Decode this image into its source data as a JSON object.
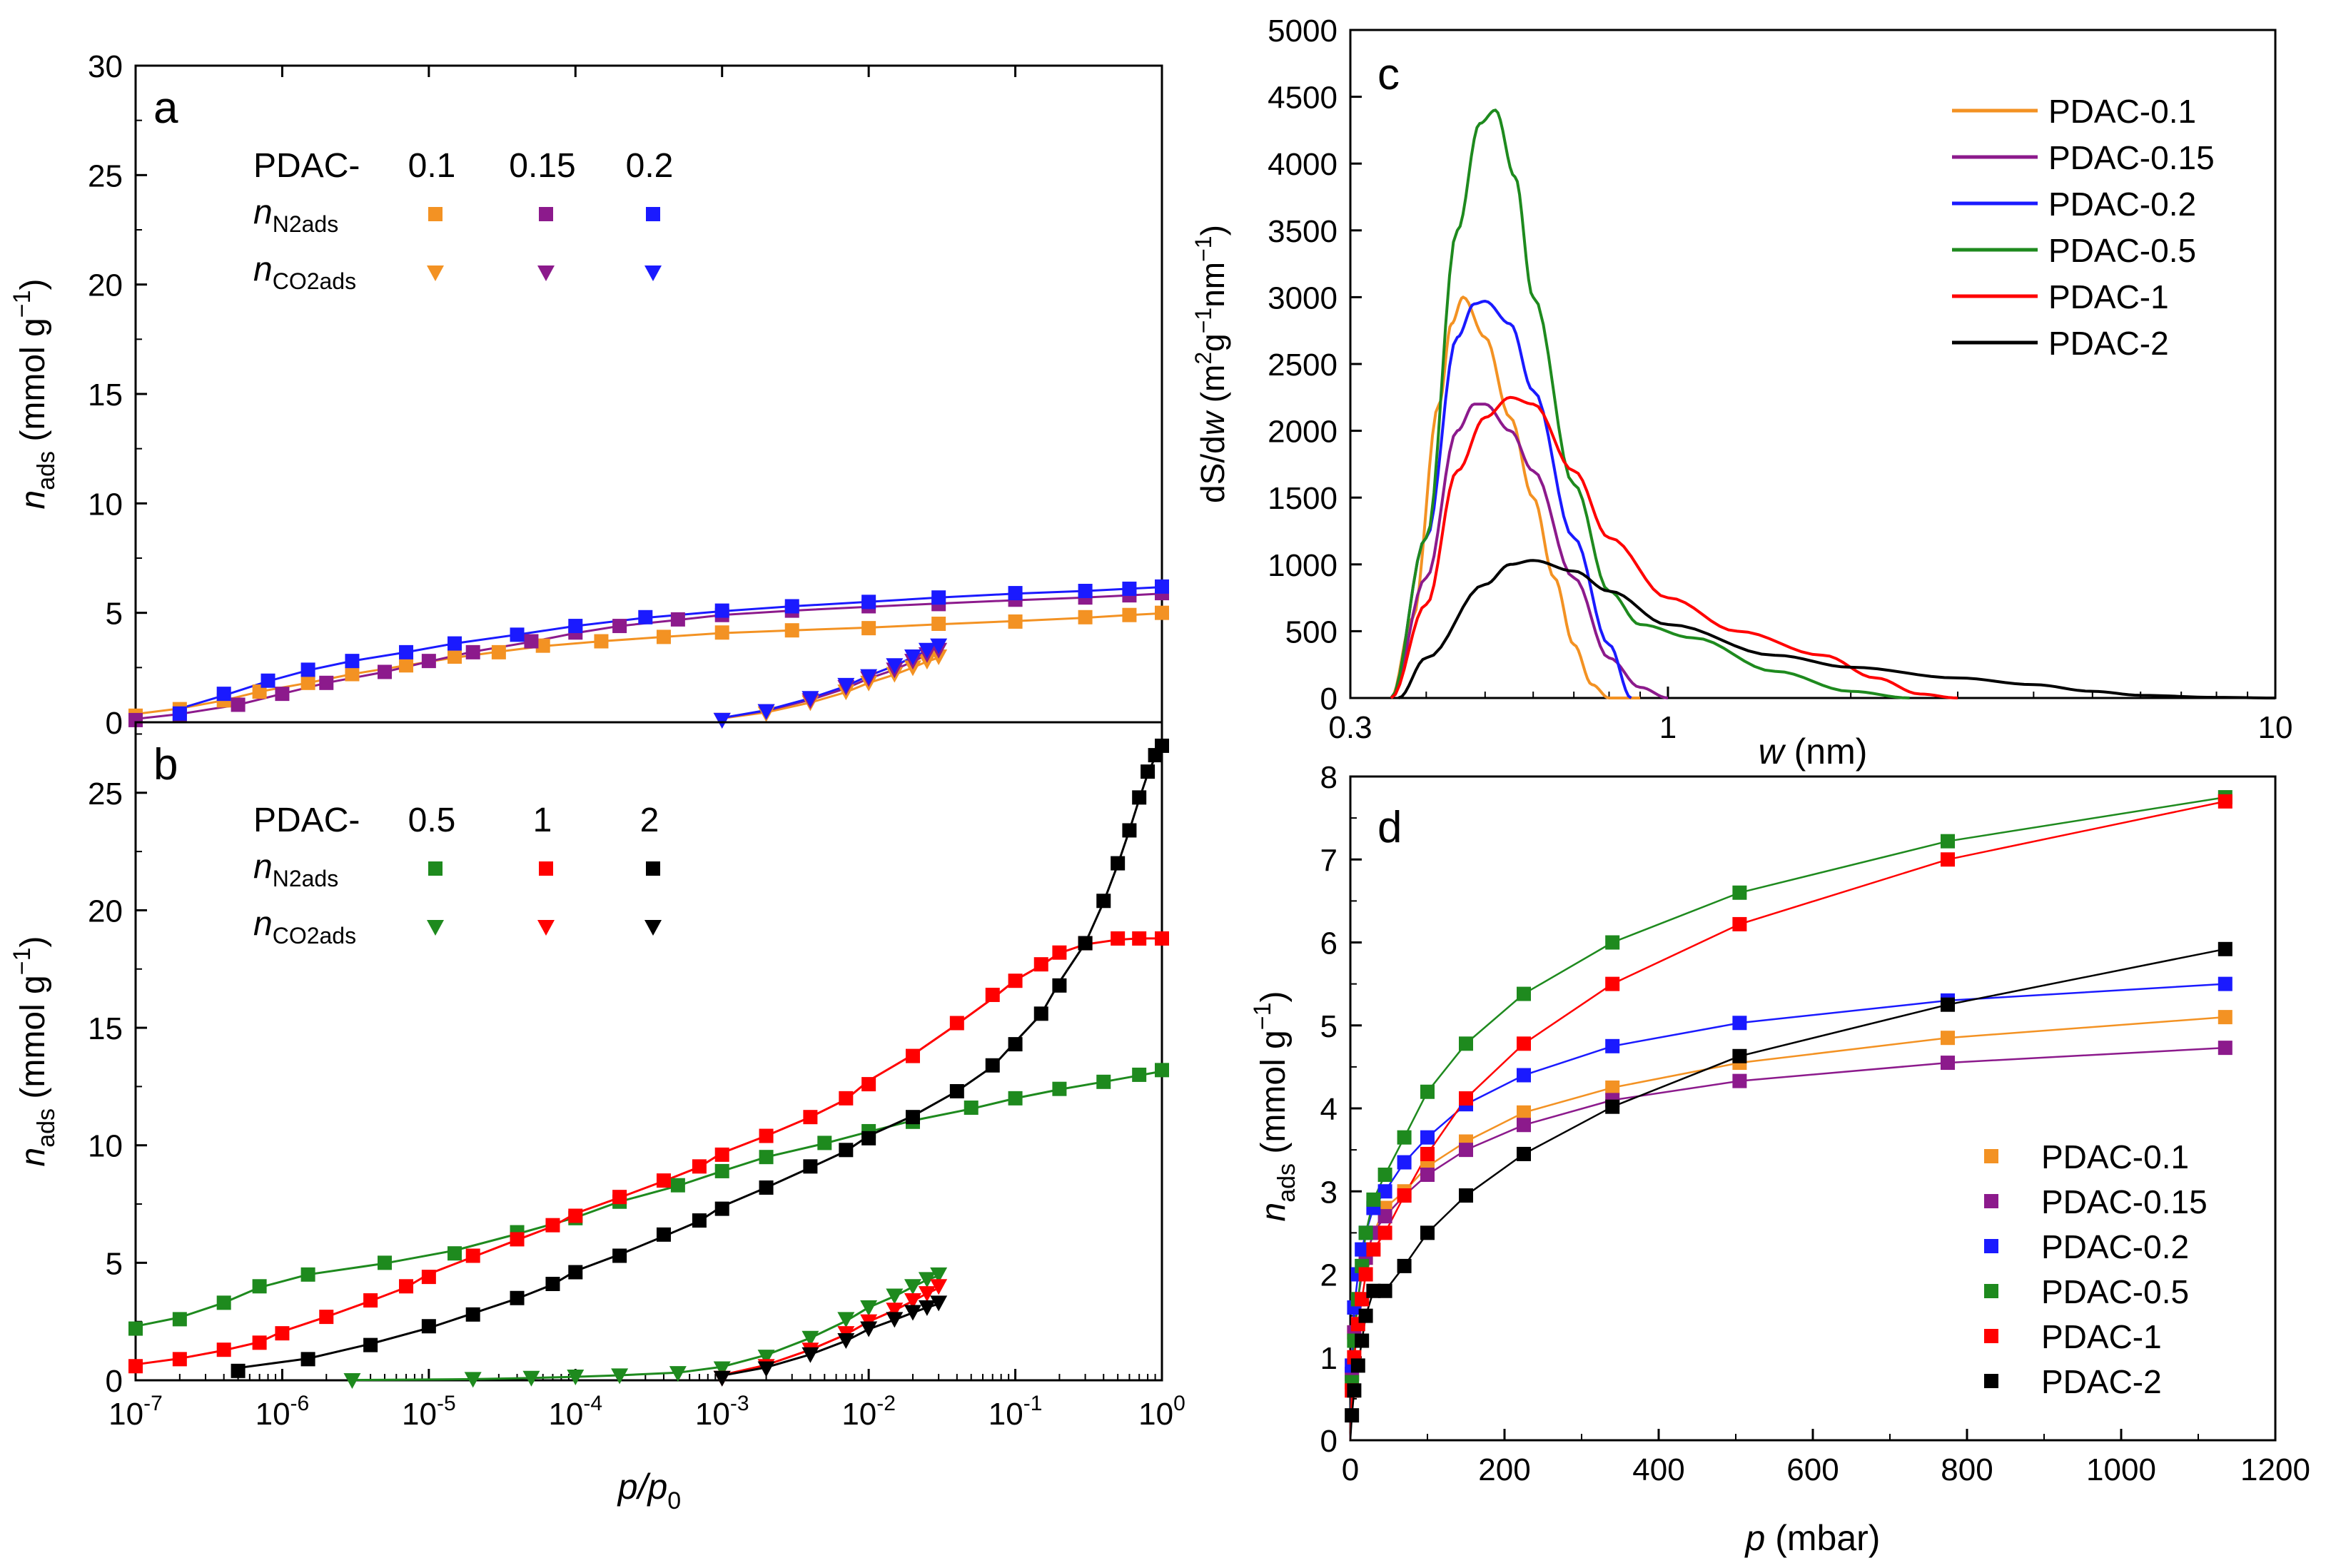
{
  "chart_data": [
    {
      "panel": "a",
      "type": "scatter",
      "x_axis": "log",
      "xlim": [
        1e-07,
        1
      ],
      "ylim": [
        0,
        30
      ],
      "yticks": [
        0,
        5,
        10,
        15,
        20,
        25,
        30
      ],
      "ylabel": {
        "main": "n",
        "sub": "ads",
        "unit": " (mmol g",
        "sup": "−1",
        "close": ")"
      },
      "legend": {
        "prefix": "PDAC-",
        "columns": [
          "0.1",
          "0.15",
          "0.2"
        ],
        "colors": [
          "#f39223",
          "#8c1a8c",
          "#1a1aff"
        ],
        "row1": {
          "main": "n",
          "sub": "N2ads"
        },
        "row2": {
          "main": "n",
          "sub": "CO2ads"
        }
      },
      "series": [
        {
          "name": "PDAC-0.1 N2",
          "color": "#f39223",
          "marker": "square",
          "x": [
            1e-07,
            2e-07,
            4e-07,
            7e-07,
            1.5e-06,
            3e-06,
            7e-06,
            1.5e-05,
            3e-05,
            6e-05,
            0.00015,
            0.0004,
            0.001,
            0.003,
            0.01,
            0.03,
            0.1,
            0.3,
            0.6,
            1
          ],
          "y": [
            0.3,
            0.6,
            1.0,
            1.4,
            1.8,
            2.2,
            2.6,
            3.0,
            3.2,
            3.5,
            3.7,
            3.9,
            4.1,
            4.2,
            4.3,
            4.5,
            4.6,
            4.8,
            4.9,
            5.0
          ]
        },
        {
          "name": "PDAC-0.15 N2",
          "color": "#8c1a8c",
          "marker": "square",
          "x": [
            1e-07,
            2e-07,
            5e-07,
            1e-06,
            2e-06,
            5e-06,
            1e-05,
            2e-05,
            5e-05,
            0.0001,
            0.0002,
            0.0005,
            0.001,
            0.003,
            0.01,
            0.03,
            0.1,
            0.3,
            0.6,
            1
          ],
          "y": [
            0.1,
            0.3,
            0.8,
            1.3,
            1.8,
            2.3,
            2.8,
            3.2,
            3.7,
            4.1,
            4.4,
            4.7,
            4.9,
            5.1,
            5.3,
            5.4,
            5.6,
            5.7,
            5.8,
            5.9
          ]
        },
        {
          "name": "PDAC-0.2 N2",
          "color": "#1a1aff",
          "marker": "square",
          "x": [
            2e-07,
            4e-07,
            8e-07,
            1.5e-06,
            3e-06,
            7e-06,
            1.5e-05,
            4e-05,
            0.0001,
            0.0003,
            0.001,
            0.003,
            0.01,
            0.03,
            0.1,
            0.3,
            0.6,
            1
          ],
          "y": [
            0.4,
            1.3,
            1.9,
            2.4,
            2.8,
            3.2,
            3.6,
            4.0,
            4.4,
            4.8,
            5.1,
            5.3,
            5.5,
            5.7,
            5.9,
            6.0,
            6.1,
            6.2
          ]
        },
        {
          "name": "PDAC-0.1 CO2",
          "color": "#f39223",
          "marker": "triangle",
          "x": [
            0.001,
            0.002,
            0.004,
            0.007,
            0.01,
            0.015,
            0.02,
            0.025,
            0.03
          ],
          "y": [
            0.1,
            0.4,
            0.9,
            1.4,
            1.8,
            2.2,
            2.5,
            2.8,
            3.0
          ]
        },
        {
          "name": "PDAC-0.15 CO2",
          "color": "#8c1a8c",
          "marker": "triangle",
          "x": [
            0.001,
            0.002,
            0.004,
            0.007,
            0.01,
            0.015,
            0.02,
            0.025,
            0.03
          ],
          "y": [
            0.1,
            0.5,
            1.0,
            1.6,
            2.0,
            2.4,
            2.8,
            3.1,
            3.3
          ]
        },
        {
          "name": "PDAC-0.2 CO2",
          "color": "#1a1aff",
          "marker": "triangle",
          "x": [
            0.001,
            0.002,
            0.004,
            0.007,
            0.01,
            0.015,
            0.02,
            0.025,
            0.03
          ],
          "y": [
            0.1,
            0.5,
            1.1,
            1.7,
            2.1,
            2.6,
            3.0,
            3.3,
            3.5
          ]
        }
      ]
    },
    {
      "panel": "b",
      "type": "scatter",
      "x_axis": "log",
      "xlim": [
        1e-07,
        1
      ],
      "ylim": [
        0,
        28
      ],
      "yticks": [
        0,
        5,
        10,
        15,
        20,
        25
      ],
      "xticks": [
        {
          "base": "10",
          "exp": "-7",
          "v": 1e-07
        },
        {
          "base": "10",
          "exp": "-6",
          "v": 1e-06
        },
        {
          "base": "10",
          "exp": "-5",
          "v": 1e-05
        },
        {
          "base": "10",
          "exp": "-4",
          "v": 0.0001
        },
        {
          "base": "10",
          "exp": "-3",
          "v": 0.001
        },
        {
          "base": "10",
          "exp": "-2",
          "v": 0.01
        },
        {
          "base": "10",
          "exp": "-1",
          "v": 0.1
        },
        {
          "base": "10",
          "exp": "0",
          "v": 1
        }
      ],
      "xlabel": {
        "main": "p/p",
        "sub": "0"
      },
      "ylabel": {
        "main": "n",
        "sub": "ads",
        "unit": " (mmol g",
        "sup": "−1",
        "close": ")"
      },
      "legend": {
        "prefix": "PDAC-",
        "columns": [
          "0.5",
          "1",
          "2"
        ],
        "colors": [
          "#1e8a1e",
          "#ff0000",
          "#000000"
        ],
        "row1": {
          "main": "n",
          "sub": "N2ads"
        },
        "row2": {
          "main": "n",
          "sub": "CO2ads"
        }
      },
      "series": [
        {
          "name": "PDAC-0.5 N2",
          "color": "#1e8a1e",
          "marker": "square",
          "x": [
            1e-07,
            2e-07,
            4e-07,
            7e-07,
            1.5e-06,
            5e-06,
            1.5e-05,
            4e-05,
            0.0001,
            0.0002,
            0.0005,
            0.001,
            0.002,
            0.005,
            0.01,
            0.02,
            0.05,
            0.1,
            0.2,
            0.4,
            0.7,
            1
          ],
          "y": [
            2.2,
            2.6,
            3.3,
            4.0,
            4.5,
            5.0,
            5.4,
            6.3,
            6.9,
            7.6,
            8.3,
            8.9,
            9.5,
            10.1,
            10.6,
            11.0,
            11.6,
            12.0,
            12.4,
            12.7,
            13.0,
            13.2
          ]
        },
        {
          "name": "PDAC-1 N2",
          "color": "#ff0000",
          "marker": "square",
          "x": [
            1e-07,
            2e-07,
            4e-07,
            7e-07,
            1e-06,
            2e-06,
            4e-06,
            7e-06,
            1e-05,
            2e-05,
            4e-05,
            7e-05,
            0.0001,
            0.0002,
            0.0004,
            0.0007,
            0.001,
            0.002,
            0.004,
            0.007,
            0.01,
            0.02,
            0.04,
            0.07,
            0.1,
            0.15,
            0.2,
            0.3,
            0.5,
            0.7,
            1
          ],
          "y": [
            0.6,
            0.9,
            1.3,
            1.6,
            2.0,
            2.7,
            3.4,
            4.0,
            4.4,
            5.3,
            6.0,
            6.6,
            7.0,
            7.8,
            8.5,
            9.1,
            9.6,
            10.4,
            11.2,
            12.0,
            12.6,
            13.8,
            15.2,
            16.4,
            17.0,
            17.7,
            18.2,
            18.6,
            18.8,
            18.8,
            18.8
          ]
        },
        {
          "name": "PDAC-2 N2",
          "color": "#000000",
          "marker": "square",
          "x": [
            5e-07,
            1.5e-06,
            4e-06,
            1e-05,
            2e-05,
            4e-05,
            7e-05,
            0.0001,
            0.0002,
            0.0004,
            0.0007,
            0.001,
            0.002,
            0.004,
            0.007,
            0.01,
            0.02,
            0.04,
            0.07,
            0.1,
            0.15,
            0.2,
            0.3,
            0.4,
            0.5,
            0.6,
            0.7,
            0.8,
            0.9,
            1
          ],
          "y": [
            0.4,
            0.9,
            1.5,
            2.3,
            2.8,
            3.5,
            4.1,
            4.6,
            5.3,
            6.2,
            6.8,
            7.3,
            8.2,
            9.1,
            9.8,
            10.3,
            11.2,
            12.3,
            13.4,
            14.3,
            15.6,
            16.8,
            18.6,
            20.4,
            22.0,
            23.4,
            24.8,
            25.9,
            26.6,
            27.0
          ]
        },
        {
          "name": "PDAC-0.5 CO2",
          "color": "#1e8a1e",
          "marker": "triangle",
          "x": [
            3e-06,
            2e-05,
            5e-05,
            0.0001,
            0.0002,
            0.0005,
            0.001,
            0.002,
            0.004,
            0.007,
            0.01,
            0.015,
            0.02,
            0.025,
            0.03
          ],
          "y": [
            0.0,
            0.05,
            0.1,
            0.15,
            0.2,
            0.3,
            0.5,
            1.0,
            1.8,
            2.6,
            3.1,
            3.6,
            4.0,
            4.3,
            4.5
          ]
        },
        {
          "name": "PDAC-1 CO2",
          "color": "#ff0000",
          "marker": "triangle",
          "x": [
            0.001,
            0.002,
            0.004,
            0.007,
            0.01,
            0.015,
            0.02,
            0.025,
            0.03
          ],
          "y": [
            0.1,
            0.6,
            1.3,
            2.0,
            2.5,
            3.0,
            3.4,
            3.7,
            4.0
          ]
        },
        {
          "name": "PDAC-2 CO2",
          "color": "#000000",
          "marker": "triangle",
          "x": [
            0.001,
            0.002,
            0.004,
            0.007,
            0.01,
            0.015,
            0.02,
            0.025,
            0.03
          ],
          "y": [
            0.1,
            0.5,
            1.1,
            1.7,
            2.2,
            2.6,
            2.9,
            3.1,
            3.3
          ]
        }
      ]
    },
    {
      "panel": "c",
      "type": "line",
      "x_axis": "log",
      "xlim": [
        0.3,
        10
      ],
      "ylim": [
        0,
        5000
      ],
      "yticks": [
        0,
        500,
        1000,
        1500,
        2000,
        2500,
        3000,
        3500,
        4000,
        4500,
        5000
      ],
      "xticks": [
        {
          "label": "0.3",
          "v": 0.3
        },
        {
          "label": "1",
          "v": 1
        },
        {
          "label": "10",
          "v": 10
        }
      ],
      "xlabel": {
        "main": "w",
        "unit": " (nm)"
      },
      "ylabel": {
        "a": "dS/d",
        "b": "w",
        "c": " (m",
        "s1": "2",
        "d": "g",
        "s2": "−1",
        "e": "nm",
        "s3": "−1",
        "f": ")"
      },
      "series": [
        {
          "name": "PDAC-0.1",
          "color": "#f39223",
          "x": [
            0.35,
            0.38,
            0.42,
            0.44,
            0.46,
            0.5,
            0.55,
            0.6,
            0.65,
            0.7,
            0.75,
            0.8,
            0.9
          ],
          "y": [
            0,
            600,
            2200,
            2800,
            3000,
            2700,
            2100,
            1500,
            900,
            400,
            100,
            0,
            0
          ]
        },
        {
          "name": "PDAC-0.15",
          "color": "#8c1a8c",
          "x": [
            0.35,
            0.4,
            0.45,
            0.48,
            0.5,
            0.55,
            0.6,
            0.7,
            0.8,
            0.9,
            1.0
          ],
          "y": [
            0,
            900,
            2000,
            2200,
            2200,
            2000,
            1700,
            900,
            300,
            80,
            0
          ]
        },
        {
          "name": "PDAC-0.2",
          "color": "#1a1aff",
          "x": [
            0.35,
            0.4,
            0.45,
            0.48,
            0.5,
            0.55,
            0.6,
            0.7,
            0.8,
            0.87
          ],
          "y": [
            0,
            1200,
            2700,
            2950,
            2970,
            2800,
            2300,
            1200,
            400,
            0
          ]
        },
        {
          "name": "PDAC-0.5",
          "color": "#1e8a1e",
          "x": [
            0.35,
            0.4,
            0.45,
            0.49,
            0.52,
            0.56,
            0.6,
            0.7,
            0.8,
            0.9,
            1.1,
            1.5,
            2.0,
            2.5
          ],
          "y": [
            0,
            1200,
            3500,
            4300,
            4400,
            3900,
            3000,
            1600,
            800,
            550,
            450,
            200,
            50,
            0
          ]
        },
        {
          "name": "PDAC-1",
          "color": "#ff0000",
          "x": [
            0.35,
            0.4,
            0.45,
            0.5,
            0.55,
            0.6,
            0.7,
            0.8,
            1.0,
            1.3,
            1.8,
            2.2,
            2.6,
            3.0
          ],
          "y": [
            0,
            700,
            1700,
            2100,
            2250,
            2200,
            1700,
            1200,
            750,
            500,
            320,
            150,
            30,
            0
          ]
        },
        {
          "name": "PDAC-2",
          "color": "#000000",
          "x": [
            0.36,
            0.4,
            0.5,
            0.55,
            0.6,
            0.7,
            0.8,
            1.0,
            1.5,
            2.0,
            3.0,
            4.0,
            5.0,
            6.0,
            8.0,
            10.0
          ],
          "y": [
            0,
            300,
            850,
            1000,
            1030,
            950,
            800,
            550,
            320,
            230,
            150,
            100,
            50,
            20,
            5,
            0
          ]
        }
      ]
    },
    {
      "panel": "d",
      "type": "scatter",
      "xlim": [
        0,
        1200
      ],
      "ylim": [
        0,
        8
      ],
      "xticks": [
        0,
        200,
        400,
        600,
        800,
        1000,
        1200
      ],
      "yticks": [
        0,
        1,
        2,
        3,
        4,
        5,
        6,
        7,
        8
      ],
      "xlabel": {
        "main": "p",
        "unit": " (mbar)"
      },
      "ylabel": {
        "main": "n",
        "sub": "ads",
        "unit": " (mmol g",
        "sup": "−1",
        "close": ")"
      },
      "x": [
        2,
        5,
        10,
        15,
        20,
        30,
        45,
        70,
        100,
        150,
        225,
        340,
        505,
        775,
        1135
      ],
      "series": [
        {
          "name": "PDAC-0.1",
          "color": "#f39223",
          "y": [
            0.8,
            1.3,
            1.7,
            2.0,
            2.2,
            2.5,
            2.8,
            3.0,
            3.3,
            3.6,
            3.95,
            4.25,
            4.55,
            4.85,
            5.1
          ]
        },
        {
          "name": "PDAC-0.15",
          "color": "#8c1a8c",
          "y": [
            0.8,
            1.3,
            1.7,
            2.0,
            2.2,
            2.5,
            2.7,
            2.95,
            3.2,
            3.5,
            3.8,
            4.1,
            4.33,
            4.55,
            4.73
          ]
        },
        {
          "name": "PDAC-0.2",
          "color": "#1a1aff",
          "y": [
            0.9,
            1.6,
            2.0,
            2.3,
            2.5,
            2.8,
            3.0,
            3.35,
            3.65,
            4.05,
            4.4,
            4.75,
            5.03,
            5.3,
            5.5
          ]
        },
        {
          "name": "PDAC-0.5",
          "color": "#1e8a1e",
          "y": [
            0.7,
            1.2,
            1.7,
            2.1,
            2.5,
            2.9,
            3.2,
            3.65,
            4.2,
            4.78,
            5.38,
            6.0,
            6.6,
            7.22,
            7.75
          ]
        },
        {
          "name": "PDAC-1",
          "color": "#ff0000",
          "y": [
            0.6,
            1.0,
            1.4,
            1.7,
            2.0,
            2.3,
            2.5,
            2.95,
            3.45,
            4.12,
            4.78,
            5.5,
            6.22,
            7.0,
            7.7
          ]
        },
        {
          "name": "PDAC-2",
          "color": "#000000",
          "y": [
            0.3,
            0.6,
            0.9,
            1.2,
            1.5,
            1.8,
            1.8,
            2.1,
            2.5,
            2.95,
            3.45,
            4.02,
            4.63,
            5.25,
            5.92
          ]
        }
      ],
      "legend": [
        "PDAC-0.1",
        "PDAC-0.15",
        "PDAC-0.2",
        "PDAC-0.5",
        "PDAC-1",
        "PDAC-2"
      ]
    }
  ],
  "panel_labels": {
    "a": "a",
    "b": "b",
    "c": "c",
    "d": "d"
  }
}
